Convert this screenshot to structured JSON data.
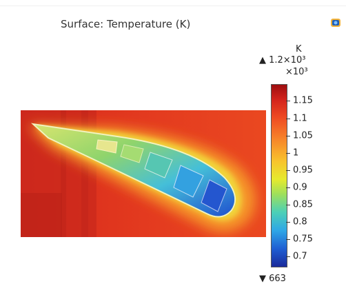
{
  "plot": {
    "title": "Surface: Temperature (K)"
  },
  "colorbar": {
    "unit": "K",
    "max_label": "▲ 1.2×10³",
    "multiplier_label": "×10³",
    "min_label": "▼ 663",
    "ticks": [
      "1.15",
      "1.1",
      "1.05",
      "1",
      "0.95",
      "0.9",
      "0.85",
      "0.8",
      "0.75",
      "0.7"
    ],
    "colors": [
      "#9e0e10",
      "#d2231c",
      "#ee4a22",
      "#f7852a",
      "#f8c32d",
      "#e6ea2e",
      "#9fe05a",
      "#4cd0b6",
      "#2fa7e6",
      "#1f5fd3",
      "#1a2a9a"
    ]
  },
  "icons": {
    "corner": "camera-icon"
  }
}
